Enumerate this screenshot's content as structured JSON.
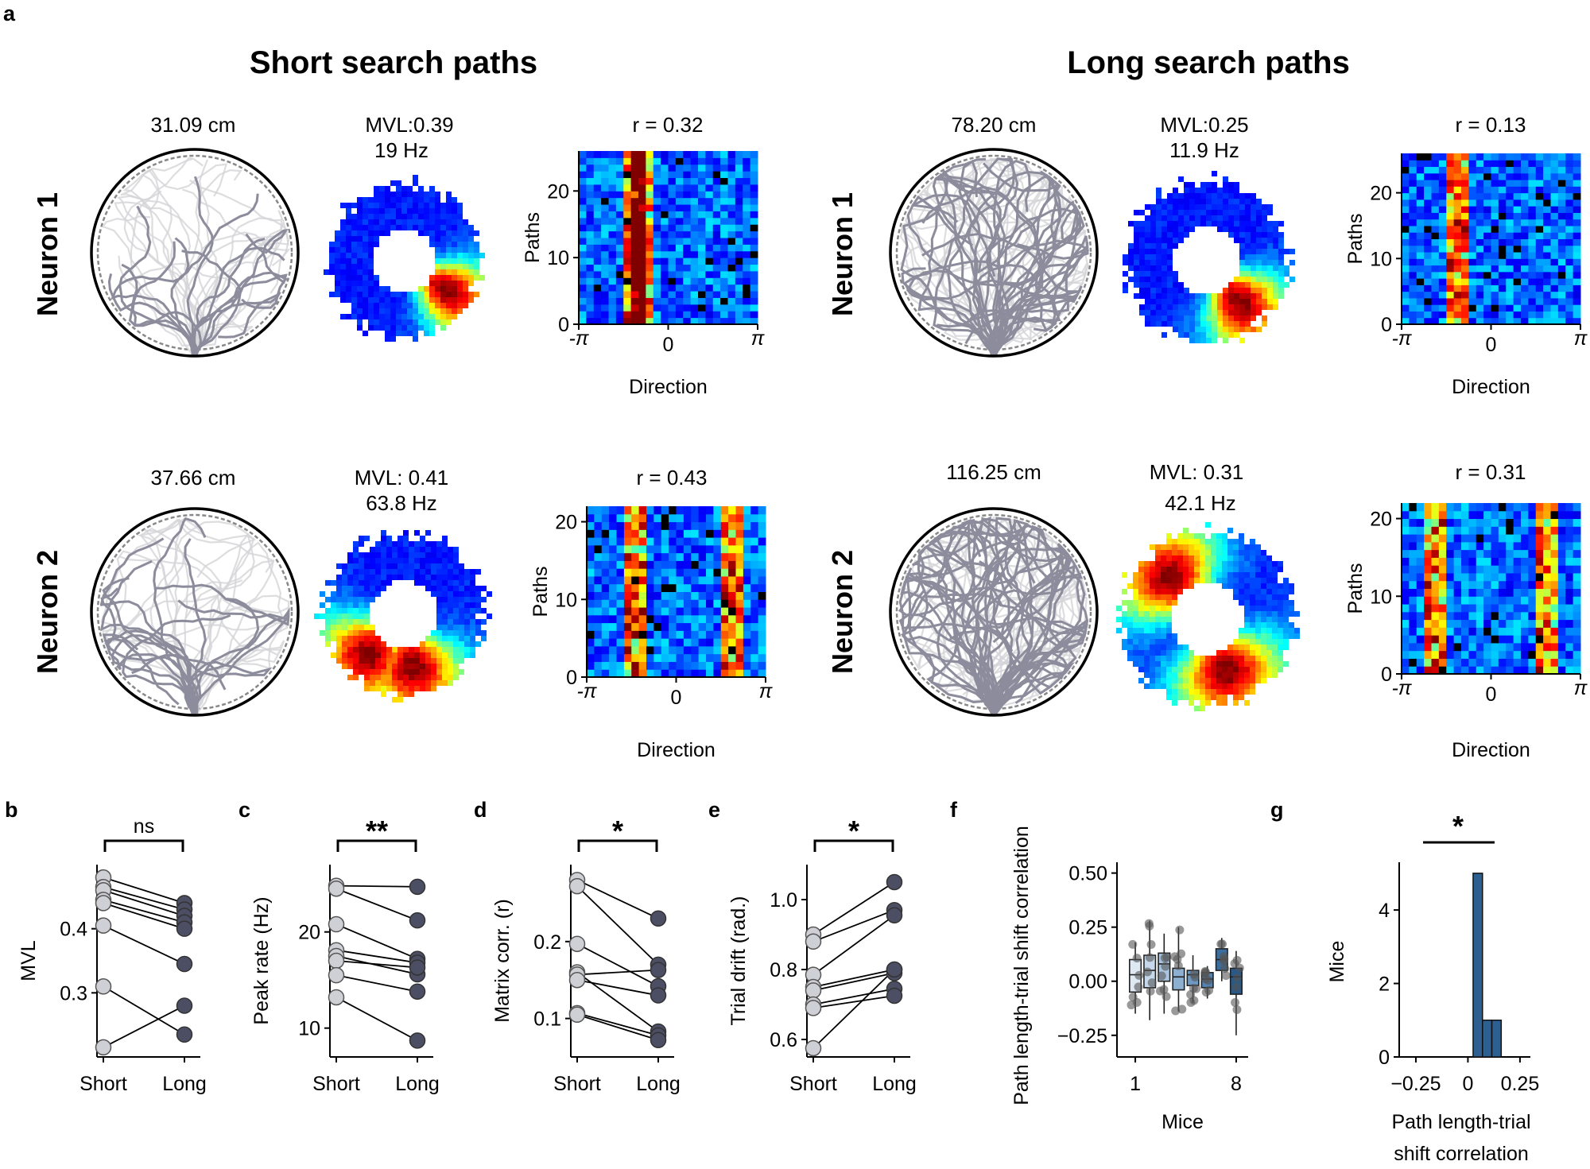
{
  "figure": {
    "panel_labels": {
      "a": "a",
      "b": "b",
      "c": "c",
      "d": "d",
      "e": "e",
      "f": "f",
      "g": "g"
    },
    "headers": {
      "short": "Short search paths",
      "long": "Long search paths"
    },
    "neurons": {
      "n1": "Neuron 1",
      "n2": "Neuron 2"
    },
    "panel_a": {
      "short_n1": {
        "path_len": "31.09 cm",
        "mvl": "MVL:0.39",
        "rate": "19 Hz",
        "r": "r = 0.32"
      },
      "long_n1": {
        "path_len": "78.20 cm",
        "mvl": "MVL:0.25",
        "rate": "11.9 Hz",
        "r": "r = 0.13"
      },
      "short_n2": {
        "path_len": "37.66 cm",
        "mvl": "MVL: 0.41",
        "rate": "63.8 Hz",
        "r": "r = 0.43"
      },
      "long_n2": {
        "path_len": "116.25 cm",
        "mvl": "MVL: 0.31",
        "rate": "42.1 Hz",
        "r": "r = 0.31"
      },
      "matrix_ylabel": "Paths",
      "matrix_xlabel": "Direction",
      "xticks": [
        "-π",
        "0",
        "π"
      ],
      "yticks": [
        "0",
        "10",
        "20"
      ]
    },
    "colors": {
      "trace_dark": "#8c8c9c",
      "trace_light": "#d4d4d8",
      "bar": "#2e5f91",
      "dot_short": "#cfcfd6",
      "dot_long": "#4c4f64"
    }
  },
  "chart_data": [
    {
      "panel": "b",
      "type": "scatter",
      "ylabel": "MVL",
      "categories": [
        "Short",
        "Long"
      ],
      "sig": "ns",
      "ylim": [
        0.2,
        0.5
      ],
      "yticks": [
        0.3,
        0.4
      ],
      "ytick_labels": [
        "0.3",
        "0.4"
      ],
      "pairs": [
        [
          0.48,
          0.44
        ],
        [
          0.465,
          0.43
        ],
        [
          0.46,
          0.42
        ],
        [
          0.445,
          0.41
        ],
        [
          0.44,
          0.4
        ],
        [
          0.405,
          0.345
        ],
        [
          0.31,
          0.235
        ],
        [
          0.215,
          0.28
        ]
      ]
    },
    {
      "panel": "c",
      "type": "scatter",
      "ylabel": "Peak rate (Hz)",
      "categories": [
        "Short",
        "Long"
      ],
      "sig": "**",
      "ylim": [
        7,
        27
      ],
      "yticks": [
        10,
        20
      ],
      "ytick_labels": [
        "10",
        "20"
      ],
      "pairs": [
        [
          24.8,
          24.7
        ],
        [
          24.5,
          21.2
        ],
        [
          20.8,
          17.2
        ],
        [
          18.1,
          16.8
        ],
        [
          17.5,
          15.6
        ],
        [
          17.0,
          16.3
        ],
        [
          15.5,
          13.8
        ],
        [
          13.2,
          8.7
        ]
      ]
    },
    {
      "panel": "d",
      "type": "scatter",
      "ylabel": "Matrix corr. (r)",
      "categories": [
        "Short",
        "Long"
      ],
      "sig": "*",
      "ylim": [
        0.05,
        0.3
      ],
      "yticks": [
        0.1,
        0.2
      ],
      "ytick_labels": [
        "0.1",
        "0.2"
      ],
      "pairs": [
        [
          0.28,
          0.23
        ],
        [
          0.272,
          0.17
        ],
        [
          0.197,
          0.142
        ],
        [
          0.16,
          0.083
        ],
        [
          0.157,
          0.163
        ],
        [
          0.15,
          0.13
        ],
        [
          0.107,
          0.078
        ],
        [
          0.105,
          0.072
        ]
      ]
    },
    {
      "panel": "e",
      "type": "scatter",
      "ylabel": "Trial drift (rad.)",
      "categories": [
        "Short",
        "Long"
      ],
      "sig": "*",
      "ylim": [
        0.55,
        1.1
      ],
      "yticks": [
        0.6,
        0.8,
        1.0
      ],
      "ytick_labels": [
        "0.6",
        "0.8",
        "1.0"
      ],
      "pairs": [
        [
          0.9,
          1.05
        ],
        [
          0.88,
          0.97
        ],
        [
          0.785,
          0.955
        ],
        [
          0.75,
          0.8
        ],
        [
          0.74,
          0.79
        ],
        [
          0.7,
          0.745
        ],
        [
          0.69,
          0.725
        ],
        [
          0.575,
          0.8
        ]
      ]
    },
    {
      "panel": "f",
      "type": "box",
      "ylabel": "Path length-trial shift correlation",
      "xlabel": "Mice",
      "xtick_labels": [
        "1",
        "8"
      ],
      "ylim": [
        -0.35,
        0.55
      ],
      "yticks": [
        -0.25,
        0,
        0.25,
        0.5
      ],
      "ytick_labels": [
        "−0.25",
        "0.00",
        "0.25",
        "0.50"
      ],
      "boxes": [
        {
          "q1": -0.05,
          "med": 0.03,
          "q3": 0.1,
          "lo": -0.15,
          "hi": 0.18
        },
        {
          "q1": -0.03,
          "med": 0.05,
          "q3": 0.12,
          "lo": -0.18,
          "hi": 0.28
        },
        {
          "q1": 0.0,
          "med": 0.08,
          "q3": 0.13,
          "lo": -0.15,
          "hi": 0.22
        },
        {
          "q1": -0.04,
          "med": 0.02,
          "q3": 0.06,
          "lo": -0.14,
          "hi": 0.25
        },
        {
          "q1": -0.02,
          "med": 0.03,
          "q3": 0.05,
          "lo": -0.1,
          "hi": 0.12
        },
        {
          "q1": -0.03,
          "med": 0.01,
          "q3": 0.04,
          "lo": -0.08,
          "hi": 0.07
        },
        {
          "q1": 0.05,
          "med": 0.1,
          "q3": 0.15,
          "lo": 0.0,
          "hi": 0.2
        },
        {
          "q1": -0.06,
          "med": 0.02,
          "q3": 0.06,
          "lo": -0.25,
          "hi": 0.14
        }
      ]
    },
    {
      "panel": "g",
      "type": "bar",
      "ylabel": "Mice",
      "xlabel": "Path length-trial shift correlation",
      "sig": "*",
      "xlim": [
        -0.33,
        0.3
      ],
      "ylim": [
        0,
        5.3
      ],
      "yticks": [
        0,
        2,
        4
      ],
      "ytick_labels": [
        "0",
        "2",
        "4"
      ],
      "xticks": [
        -0.25,
        0,
        0.25
      ],
      "xtick_labels": [
        "−0.25",
        "0",
        "0.25"
      ],
      "bins": [
        {
          "x0": 0.025,
          "x1": 0.07,
          "v": 5
        },
        {
          "x0": 0.07,
          "x1": 0.115,
          "v": 1
        },
        {
          "x0": 0.115,
          "x1": 0.16,
          "v": 1
        }
      ]
    }
  ]
}
